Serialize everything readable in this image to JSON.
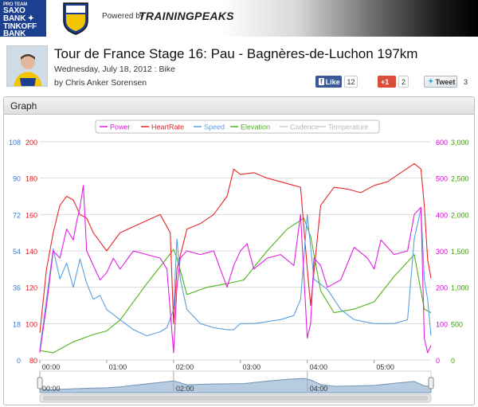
{
  "banner": {
    "team_logo": {
      "line1": "PRO TEAM",
      "line2": "SAXO",
      "line3": "BANK ✦",
      "line4": "TINKOFF BANK"
    },
    "powered_by": "Powered by",
    "brand": "TRAININGPEAKS"
  },
  "header": {
    "title": "Tour de France Stage 16: Pau - Bagnères-de-Luchon 197km",
    "date_line": "Wednesday, July 18, 2012 : Bike",
    "athlete_line": "by Chris Anker Sorensen"
  },
  "social": {
    "like_label": "Like",
    "like_count": "12",
    "gplus_label": "+1",
    "gplus_count": "2",
    "tweet_label": "Tweet",
    "tweet_count": "3"
  },
  "graph": {
    "title": "Graph"
  },
  "chart_data": {
    "type": "line",
    "legend": [
      "Power",
      "HeartRate",
      "Speed",
      "Elevation",
      "Cadence",
      "Temperature"
    ],
    "legend_placement": "top-center",
    "x_ticks": [
      "00:00",
      "01:00",
      "02:00",
      "03:00",
      "04:00",
      "05:00"
    ],
    "x_range_hours": [
      0,
      5.85
    ],
    "y_axes": {
      "speed": {
        "ticks": [
          "108",
          "90",
          "72",
          "54",
          "36",
          "18",
          "0"
        ],
        "range": [
          0,
          108
        ],
        "color": "#3a78c9"
      },
      "heartrate": {
        "ticks": [
          "200",
          "180",
          "160",
          "140",
          "120",
          "100",
          "80"
        ],
        "range": [
          80,
          200
        ],
        "color": "#d9191c"
      },
      "power": {
        "ticks": [
          "600",
          "500",
          "400",
          "300",
          "200",
          "100",
          "0"
        ],
        "range": [
          0,
          600
        ],
        "color": "#d800d8"
      },
      "elevation": {
        "ticks": [
          "3,000",
          "2,500",
          "2,000",
          "1,500",
          "1,000",
          "500",
          "0"
        ],
        "range": [
          0,
          3000
        ],
        "color": "#3aa000"
      }
    },
    "series": [
      {
        "name": "Elevation",
        "color": "#4eb21b",
        "x": [
          0,
          0.2,
          0.5,
          0.8,
          1.0,
          1.2,
          1.6,
          1.9,
          2.0,
          2.05,
          2.2,
          2.5,
          2.8,
          3.05,
          3.4,
          3.7,
          3.95,
          4.05,
          4.2,
          4.4,
          4.7,
          5.0,
          5.3,
          5.6,
          5.75,
          5.85
        ],
        "values": [
          130,
          100,
          250,
          350,
          400,
          550,
          1050,
          1400,
          1520,
          1400,
          900,
          1000,
          1050,
          1100,
          1500,
          1800,
          1950,
          1700,
          950,
          650,
          700,
          800,
          1150,
          1450,
          700,
          650
        ]
      },
      {
        "name": "HeartRate",
        "color": "#e8262a",
        "x": [
          0,
          0.1,
          0.2,
          0.3,
          0.4,
          0.5,
          0.6,
          0.7,
          0.8,
          0.9,
          1.0,
          1.2,
          1.5,
          1.8,
          1.95,
          2.0,
          2.05,
          2.2,
          2.4,
          2.6,
          2.8,
          2.9,
          3.0,
          3.2,
          3.4,
          3.6,
          3.8,
          3.9,
          4.0,
          4.05,
          4.2,
          4.4,
          4.6,
          4.8,
          5.0,
          5.2,
          5.4,
          5.6,
          5.7,
          5.75,
          5.8,
          5.85
        ],
        "values": [
          95,
          130,
          150,
          165,
          170,
          168,
          160,
          158,
          150,
          145,
          140,
          150,
          155,
          160,
          150,
          100,
          130,
          152,
          155,
          160,
          170,
          185,
          182,
          183,
          180,
          178,
          176,
          175,
          130,
          110,
          165,
          175,
          174,
          172,
          176,
          178,
          183,
          188,
          185,
          165,
          135,
          125
        ]
      },
      {
        "name": "Speed",
        "color": "#5a9fe0",
        "x": [
          0,
          0.1,
          0.2,
          0.3,
          0.4,
          0.5,
          0.6,
          0.7,
          0.8,
          0.9,
          1.0,
          1.2,
          1.4,
          1.6,
          1.8,
          1.9,
          2.0,
          2.05,
          2.1,
          2.2,
          2.4,
          2.6,
          2.8,
          2.9,
          3.0,
          3.2,
          3.4,
          3.6,
          3.8,
          3.9,
          4.0,
          4.1,
          4.3,
          4.5,
          4.7,
          5.0,
          5.3,
          5.5,
          5.6,
          5.7,
          5.75,
          5.8,
          5.85
        ],
        "values": [
          5,
          30,
          55,
          40,
          48,
          36,
          50,
          38,
          30,
          32,
          25,
          20,
          15,
          12,
          14,
          16,
          25,
          60,
          40,
          25,
          18,
          16,
          15,
          15,
          18,
          18,
          19,
          20,
          22,
          30,
          72,
          40,
          35,
          25,
          20,
          18,
          18,
          20,
          60,
          75,
          40,
          30,
          12
        ]
      },
      {
        "name": "Power",
        "color": "#e21ee2",
        "x": [
          0,
          0.1,
          0.2,
          0.3,
          0.4,
          0.5,
          0.55,
          0.6,
          0.65,
          0.7,
          0.8,
          0.9,
          1.0,
          1.1,
          1.2,
          1.4,
          1.6,
          1.8,
          1.9,
          2.0,
          2.05,
          2.1,
          2.2,
          2.4,
          2.6,
          2.8,
          2.9,
          3.0,
          3.1,
          3.2,
          3.4,
          3.6,
          3.8,
          3.9,
          4.0,
          4.05,
          4.1,
          4.2,
          4.3,
          4.5,
          4.7,
          4.9,
          5.0,
          5.1,
          5.3,
          5.5,
          5.6,
          5.7,
          5.75,
          5.8,
          5.85
        ],
        "values": [
          20,
          150,
          300,
          280,
          360,
          330,
          380,
          420,
          480,
          300,
          260,
          220,
          240,
          280,
          250,
          300,
          290,
          280,
          250,
          20,
          200,
          280,
          300,
          290,
          300,
          200,
          260,
          300,
          320,
          250,
          280,
          290,
          260,
          400,
          60,
          100,
          280,
          260,
          200,
          220,
          310,
          280,
          250,
          330,
          290,
          300,
          400,
          420,
          60,
          20,
          40
        ]
      }
    ],
    "navigator_ticks": [
      "00:00",
      "02:00",
      "04:00"
    ]
  }
}
